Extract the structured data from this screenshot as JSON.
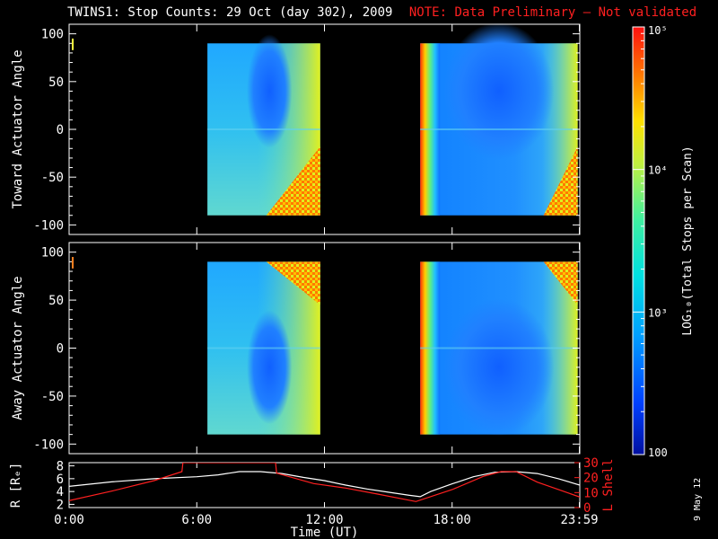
{
  "title": "TWINS1: Stop Counts: 29 Oct (day 302), 2009",
  "note": "NOTE: Data Preliminary – Not validated",
  "stamp": "9 May 12",
  "colors": {
    "background": "#000000",
    "axes": "#ffffff",
    "note": "#ff2020",
    "r_line": "#ffffff",
    "lshell_line": "#ff2020",
    "data_gap": "#000000"
  },
  "chart_data": [
    {
      "type": "heatmap",
      "panel": "toward",
      "ylabel": "Toward Actuator Angle",
      "ylim": [
        -110,
        110
      ],
      "yticks": [
        100,
        50,
        0,
        -50,
        -100
      ],
      "xlim_hours": [
        0,
        24
      ],
      "data_intervals_hours": [
        [
          6.5,
          11.8
        ],
        [
          16.5,
          23.9
        ]
      ],
      "description_ignored": null
    },
    {
      "type": "heatmap",
      "panel": "away",
      "ylabel": "Away Actuator Angle",
      "ylim": [
        -110,
        110
      ],
      "yticks": [
        100,
        50,
        0,
        -50,
        -100
      ],
      "xlim_hours": [
        0,
        24
      ],
      "data_intervals_hours": [
        [
          6.5,
          11.8
        ],
        [
          16.5,
          23.9
        ]
      ]
    },
    {
      "type": "line",
      "panel": "orbit",
      "xlabel": "Time (UT)",
      "xticks": [
        "0:00",
        "6:00",
        "12:00",
        "18:00",
        "23:59"
      ],
      "xtick_hours": [
        0,
        6,
        12,
        18,
        23.98
      ],
      "left_axis": {
        "label": "R [Rₑ]",
        "ylim": [
          1.5,
          8.5
        ],
        "yticks": [
          2,
          4,
          6,
          8
        ]
      },
      "right_axis": {
        "label": "L Shell",
        "ylim": [
          0,
          30
        ],
        "yticks": [
          0,
          10,
          20,
          30
        ]
      },
      "series": [
        {
          "name": "R [Rₑ]",
          "axis": "left",
          "x": [
            0,
            2,
            4,
            6,
            7,
            8,
            9,
            10,
            11,
            12,
            13,
            14,
            15,
            16,
            16.5,
            17,
            18,
            19,
            20,
            21,
            22,
            23,
            24
          ],
          "y": [
            4.8,
            5.5,
            6.0,
            6.3,
            6.6,
            7.1,
            7.1,
            6.8,
            6.2,
            5.7,
            5.0,
            4.4,
            3.9,
            3.4,
            3.2,
            4.0,
            5.2,
            6.3,
            7.0,
            7.1,
            6.8,
            6.0,
            5.0
          ]
        },
        {
          "name": "L Shell",
          "axis": "right",
          "x": [
            0,
            2,
            4,
            5.3,
            5.35,
            9.7,
            9.75,
            11.5,
            13,
            14.5,
            16.3,
            18,
            19.5,
            20.3,
            21,
            22,
            24
          ],
          "y": [
            4.6,
            11,
            18,
            24,
            30,
            30,
            23,
            16,
            13,
            9,
            4,
            12,
            21,
            24,
            24,
            17,
            7
          ]
        }
      ]
    }
  ],
  "colorbar": {
    "label": "LOG₁₀(Total Stops per Scan)",
    "tick_labels": [
      "100",
      "10³",
      "10⁴",
      "10⁵"
    ],
    "tick_values_log": [
      2,
      3,
      4,
      5
    ],
    "range_log": [
      2,
      5
    ]
  }
}
